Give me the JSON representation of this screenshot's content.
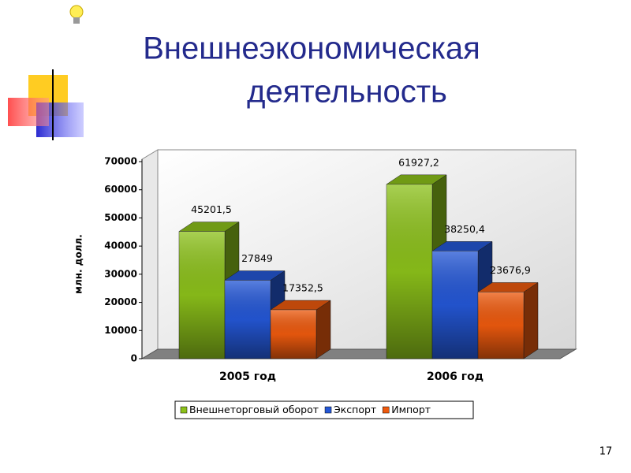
{
  "title_lines": [
    "Внешнеэкономическая",
    "деятельность"
  ],
  "page_number": "17",
  "chart_data": {
    "type": "bar3d",
    "ylabel": "млн. долл.",
    "categories": [
      "2005 год",
      "2006 год"
    ],
    "series": [
      {
        "name": "Внешнеторговый оборот",
        "color": "#8cc11a",
        "values": [
          45201.5,
          61927.2
        ],
        "value_labels": [
          "45201,5",
          "61927,2"
        ]
      },
      {
        "name": "Экспорт",
        "color": "#2457d6",
        "values": [
          27849,
          38250.4
        ],
        "value_labels": [
          "27849",
          "38250,4"
        ]
      },
      {
        "name": "Импорт",
        "color": "#ee5a0e",
        "values": [
          17352.5,
          23676.9
        ],
        "value_labels": [
          "17352,5",
          "23676,9"
        ]
      }
    ],
    "ylim": [
      0,
      70000
    ],
    "yticks": [
      0,
      10000,
      20000,
      30000,
      40000,
      50000,
      60000,
      70000
    ],
    "grid": false,
    "legend": "bottom"
  }
}
